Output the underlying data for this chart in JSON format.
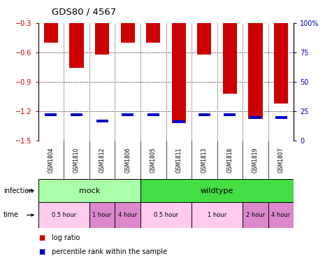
{
  "title": "GDS80 / 4567",
  "samples": [
    "GSM1804",
    "GSM1810",
    "GSM1812",
    "GSM1806",
    "GSM1805",
    "GSM1811",
    "GSM1813",
    "GSM1818",
    "GSM1819",
    "GSM1807"
  ],
  "log_ratios": [
    -0.5,
    -0.76,
    -0.62,
    -0.5,
    -0.5,
    -1.32,
    -0.62,
    -1.02,
    -1.28,
    -1.12
  ],
  "percentile_ranks": [
    22,
    22,
    17,
    22,
    22,
    16,
    22,
    22,
    20,
    20
  ],
  "bar_color": "#cc0000",
  "pct_color": "#0000cc",
  "pct_bar_height": 0.03,
  "ylim_left": [
    -1.5,
    -0.3
  ],
  "ylim_right": [
    0,
    100
  ],
  "yticks_left": [
    -1.5,
    -1.2,
    -0.9,
    -0.6,
    -0.3
  ],
  "yticks_right": [
    0,
    25,
    50,
    75,
    100
  ],
  "infection_groups": [
    {
      "label": "mock",
      "start": 0,
      "end": 4,
      "color": "#aaffaa"
    },
    {
      "label": "wildtype",
      "start": 4,
      "end": 10,
      "color": "#44dd44"
    }
  ],
  "time_groups": [
    {
      "label": "0.5 hour",
      "start": 0,
      "end": 2,
      "color": "#ffccee"
    },
    {
      "label": "1 hour",
      "start": 2,
      "end": 3,
      "color": "#dd88cc"
    },
    {
      "label": "4 hour",
      "start": 3,
      "end": 4,
      "color": "#dd88cc"
    },
    {
      "label": "0.5 hour",
      "start": 4,
      "end": 6,
      "color": "#ffccee"
    },
    {
      "label": "1 hour",
      "start": 6,
      "end": 8,
      "color": "#ffccee"
    },
    {
      "label": "2 hour",
      "start": 8,
      "end": 9,
      "color": "#dd88cc"
    },
    {
      "label": "4 hour",
      "start": 9,
      "end": 10,
      "color": "#dd88cc"
    }
  ],
  "legend_items": [
    {
      "label": "log ratio",
      "color": "#cc0000"
    },
    {
      "label": "percentile rank within the sample",
      "color": "#0000cc"
    }
  ],
  "bar_width": 0.55,
  "bg_color": "#ffffff",
  "spine_color": "#000000",
  "left_tick_color": "#cc0000",
  "right_tick_color": "#0000bb",
  "n_samples": 10
}
